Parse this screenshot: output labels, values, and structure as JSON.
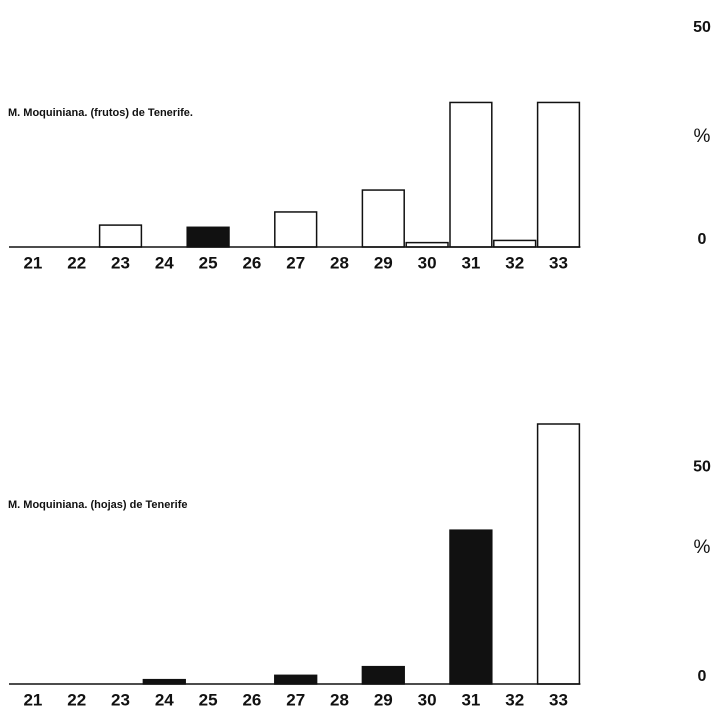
{
  "chart_data": [
    {
      "type": "bar",
      "title": "M. Moquiniana. (frutos) de Tenerife.",
      "y_label": "%",
      "categories": [
        "21",
        "22",
        "23",
        "24",
        "25",
        "26",
        "27",
        "28",
        "29",
        "30",
        "31",
        "32",
        "33"
      ],
      "values": [
        0,
        0,
        5,
        0,
        4.5,
        0,
        8,
        0,
        13,
        1,
        33,
        1.5,
        33
      ],
      "colors": [
        "#ffffff",
        "#ffffff",
        "#ffffff",
        "#ffffff",
        "#111111",
        "#ffffff",
        "#ffffff",
        "#ffffff",
        "#ffffff",
        "#ffffff",
        "#ffffff",
        "#ffffff",
        "#ffffff"
      ],
      "ylim": [
        0,
        50
      ],
      "yticks": [
        0,
        50
      ]
    },
    {
      "type": "bar",
      "title": "M. Moquiniana. (hojas) de Tenerife",
      "y_label": "%",
      "categories": [
        "21",
        "22",
        "23",
        "24",
        "25",
        "26",
        "27",
        "28",
        "29",
        "30",
        "31",
        "32",
        "33"
      ],
      "values": [
        0,
        0,
        0,
        1,
        0,
        0,
        2,
        0,
        4,
        0,
        35.5,
        0,
        60
      ],
      "colors": [
        "#ffffff",
        "#ffffff",
        "#ffffff",
        "#111111",
        "#ffffff",
        "#ffffff",
        "#111111",
        "#ffffff",
        "#111111",
        "#ffffff",
        "#111111",
        "#ffffff",
        "#ffffff"
      ],
      "ylim": [
        0,
        60
      ],
      "yticks": [
        0,
        50
      ]
    }
  ]
}
